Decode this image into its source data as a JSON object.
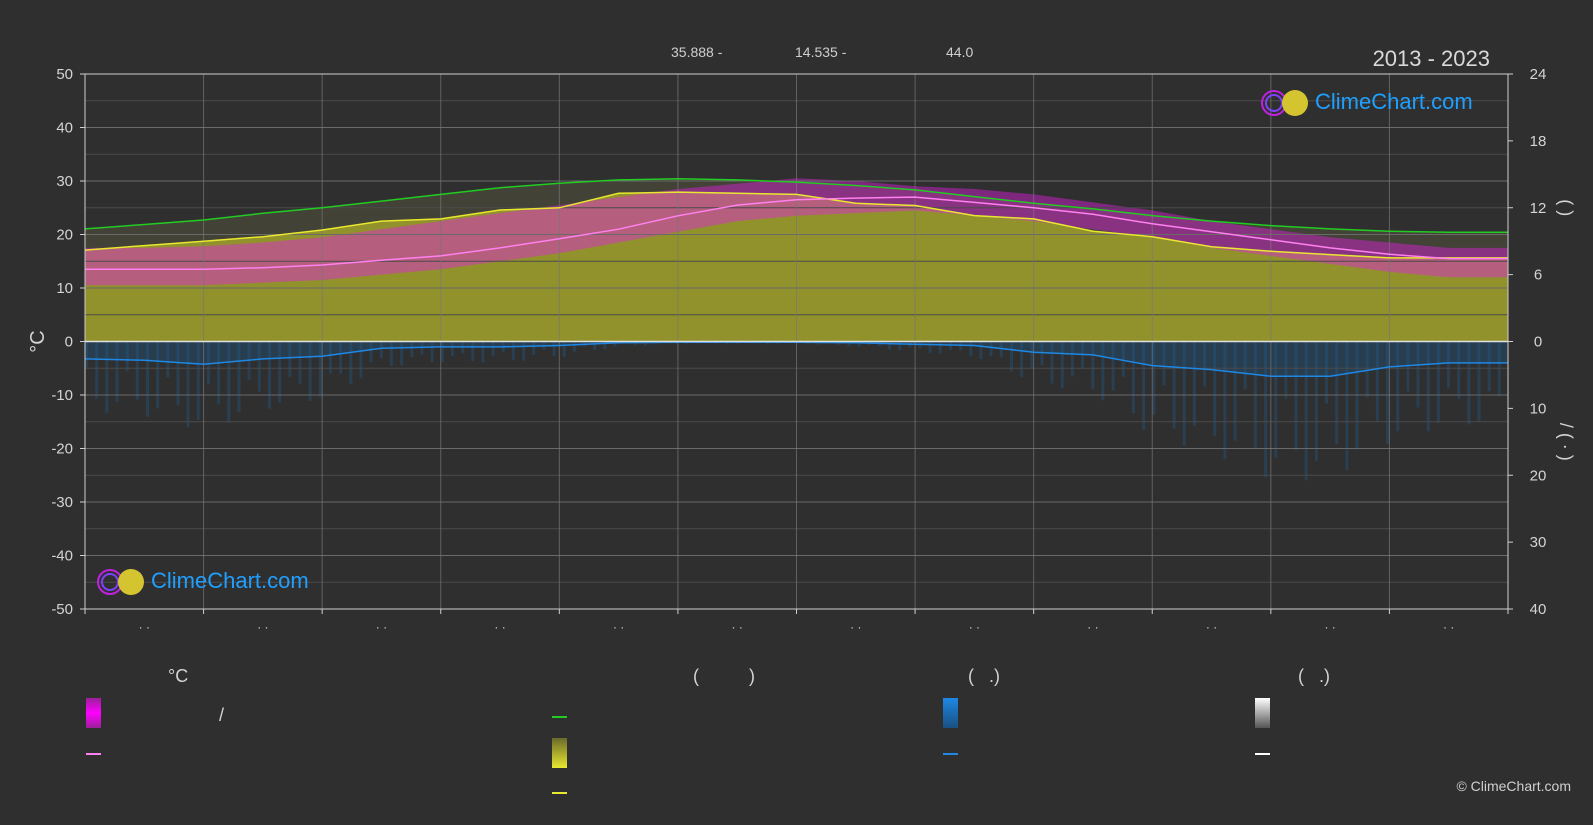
{
  "header": {
    "year_range": "2013 - 2023",
    "lat_text": "35.888 -",
    "lon_text": "14.535 -",
    "elev_text": "44.0"
  },
  "brand": {
    "logo_text": "ClimeChart.com",
    "copyright": "© ClimeChart.com"
  },
  "colors": {
    "background": "#2f2f2f",
    "temp_band": "#e01ee0",
    "daylight": "#22cc22",
    "sunshine": "#e8e830",
    "sunshine_band": "#9b9b2c",
    "precip": "#1e88e5",
    "temp_mean": "#ff80ee",
    "logo_text": "#1fa0ff"
  },
  "legend": {
    "temp_heading": "°C",
    "temp_range_slash": "/",
    "sun_heading": "(          )",
    "rain_heading": "(   .)",
    "snow_heading": "(   .)"
  },
  "chart_data": {
    "type": "area",
    "left_axis": {
      "label": "°C",
      "min": -50,
      "max": 50,
      "ticks": [
        50,
        40,
        30,
        20,
        10,
        0,
        -10,
        -20,
        -30,
        -40,
        -50
      ]
    },
    "right_axis_top": {
      "label": "(   )",
      "min": 0,
      "max": 24,
      "ticks": [
        24,
        18,
        12,
        6,
        0
      ]
    },
    "right_axis_bottom": {
      "label": "/  (  ·  )",
      "min": 0,
      "max": 40,
      "ticks": [
        0,
        10,
        20,
        30,
        40
      ]
    },
    "x_tick_labels": [
      "· ·",
      "· ·",
      "· ·",
      "· ·",
      "· ·",
      "· ·",
      "· ·",
      "· ·",
      "· ·",
      "· ·",
      "· ·",
      "· ·"
    ],
    "grid": true,
    "x": [
      0,
      0.5,
      1,
      1.5,
      2,
      2.5,
      3,
      3.5,
      4,
      4.5,
      5,
      5.5,
      6,
      6.5,
      7,
      7.5,
      8,
      8.5,
      9,
      9.5,
      10,
      10.5,
      11,
      11.5,
      12
    ],
    "series": [
      {
        "id": "daylight",
        "axis": "right_top",
        "values": [
          10.1,
          10.5,
          10.9,
          11.5,
          12.0,
          12.6,
          13.2,
          13.8,
          14.2,
          14.5,
          14.6,
          14.5,
          14.3,
          14.0,
          13.6,
          13.0,
          12.4,
          11.9,
          11.3,
          10.8,
          10.4,
          10.1,
          9.9,
          9.8,
          9.8
        ]
      },
      {
        "id": "sunshine",
        "axis": "right_top",
        "values": [
          8.2,
          8.6,
          9.0,
          9.4,
          10.0,
          10.8,
          11.0,
          11.8,
          12.0,
          13.3,
          13.4,
          13.3,
          13.2,
          12.4,
          12.2,
          11.3,
          11.0,
          9.9,
          9.4,
          8.5,
          8.1,
          7.8,
          7.5,
          7.5,
          7.5
        ]
      },
      {
        "id": "temp_mean",
        "axis": "left",
        "values": [
          13.5,
          13.5,
          13.5,
          13.8,
          14.3,
          15.2,
          16.0,
          17.5,
          19.2,
          21.0,
          23.5,
          25.5,
          26.5,
          26.8,
          27.0,
          26.0,
          25.0,
          23.8,
          22.0,
          20.5,
          19.0,
          17.5,
          16.3,
          15.5,
          15.5
        ]
      },
      {
        "id": "temp_max_band",
        "axis": "left",
        "values": [
          17.5,
          17.5,
          17.8,
          18.5,
          19.5,
          21.0,
          22.5,
          24.0,
          25.5,
          27.0,
          28.5,
          29.5,
          30.5,
          30.0,
          29.0,
          28.5,
          27.5,
          26.0,
          24.5,
          22.5,
          21.0,
          19.5,
          18.5,
          17.5,
          17.5
        ]
      },
      {
        "id": "temp_min_band",
        "axis": "left",
        "values": [
          10.5,
          10.5,
          10.5,
          11.0,
          11.5,
          12.5,
          13.5,
          15.0,
          16.5,
          18.5,
          20.5,
          22.5,
          23.5,
          24.0,
          24.5,
          23.5,
          22.5,
          21.0,
          19.5,
          17.5,
          16.0,
          14.5,
          13.0,
          12.0,
          12.0
        ]
      },
      {
        "id": "precipitation",
        "axis": "right_bottom",
        "values": [
          2.6,
          2.8,
          3.4,
          2.6,
          2.2,
          1.0,
          0.8,
          0.8,
          0.6,
          0.2,
          0.1,
          0.1,
          0.1,
          0.2,
          0.4,
          0.6,
          1.6,
          2.0,
          3.6,
          4.2,
          5.2,
          5.2,
          3.8,
          3.2,
          3.2
        ]
      }
    ]
  }
}
